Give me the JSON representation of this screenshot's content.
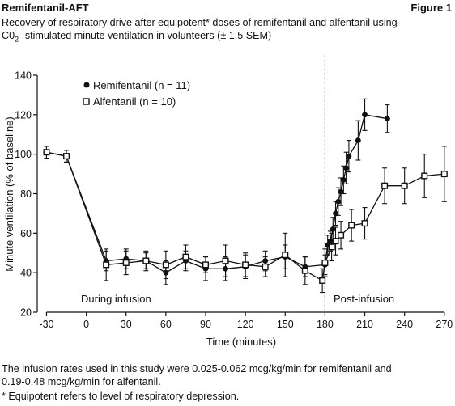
{
  "header": {
    "left": "Remifentanil-AFT",
    "right": "Figure 1",
    "subtitle_line1": "Recovery of respiratory drive after equipotent* doses of remifentanil and alfentanil using",
    "subtitle_line2_pre": "C0",
    "subtitle_line2_sub": "2",
    "subtitle_line2_post": "- stimulated minute ventilation in volunteers (± 1.5 SEM)"
  },
  "footnotes": {
    "line1": "The infusion rates used in this study were 0.025-0.062 mcg/kg/min for remifentanil and",
    "line2": "0.19-0.48 mcg/kg/min for alfentanil.",
    "line3": "* Equipotent refers to level of respiratory depression."
  },
  "chart_data": {
    "type": "line",
    "title": "",
    "xlabel": "Time (minutes)",
    "ylabel": "Minute ventilation (% of baseline)",
    "xlim": [
      -37,
      275
    ],
    "ylim": [
      20,
      140
    ],
    "x_ticks_left": [
      -30,
      0,
      30,
      60,
      90,
      120,
      150,
      180
    ],
    "x_ticks_right": [
      180,
      210,
      240,
      270
    ],
    "x_tick_labels": [
      "-30",
      "0",
      "30",
      "60",
      "90",
      "120",
      "150",
      "180",
      "210",
      "240",
      "270"
    ],
    "y_ticks": [
      20,
      40,
      60,
      80,
      100,
      120,
      140
    ],
    "y_tick_labels": [
      "20",
      "40",
      "60",
      "80",
      "100",
      "120",
      "140"
    ],
    "reference_line_x": 180,
    "annotations": [
      "During infusion",
      "Post-infusion"
    ],
    "legend_position": "top-left",
    "series": [
      {
        "name": "Remifentanil (n = 11)",
        "marker": "filled-circle",
        "points": [
          {
            "x": -30,
            "y": 101,
            "err": 3
          },
          {
            "x": -15,
            "y": 99,
            "err": 3
          },
          {
            "x": 15,
            "y": 46,
            "err": 5
          },
          {
            "x": 30,
            "y": 47,
            "err": 5
          },
          {
            "x": 45,
            "y": 46,
            "err": 4
          },
          {
            "x": 60,
            "y": 40,
            "err": 6
          },
          {
            "x": 75,
            "y": 46,
            "err": 5
          },
          {
            "x": 90,
            "y": 42,
            "err": 6
          },
          {
            "x": 105,
            "y": 42,
            "err": 6
          },
          {
            "x": 120,
            "y": 43,
            "err": 6
          },
          {
            "x": 135,
            "y": 46,
            "err": 5
          },
          {
            "x": 150,
            "y": 48,
            "err": 6
          },
          {
            "x": 165,
            "y": 43,
            "err": 5
          },
          {
            "x": 180,
            "y": 44,
            "err": 5
          },
          {
            "x": 182,
            "y": 54,
            "err": 5
          },
          {
            "x": 184,
            "y": 56,
            "err": 5
          },
          {
            "x": 186,
            "y": 62,
            "err": 6
          },
          {
            "x": 188,
            "y": 70,
            "err": 6
          },
          {
            "x": 190,
            "y": 76,
            "err": 7
          },
          {
            "x": 192,
            "y": 81,
            "err": 7
          },
          {
            "x": 194,
            "y": 87,
            "err": 7
          },
          {
            "x": 196,
            "y": 93,
            "err": 8
          },
          {
            "x": 198,
            "y": 99,
            "err": 8
          },
          {
            "x": 205,
            "y": 107,
            "err": 10
          },
          {
            "x": 210,
            "y": 120,
            "err": 8
          },
          {
            "x": 227,
            "y": 118,
            "err": 7
          }
        ]
      },
      {
        "name": "Alfentanil (n = 10)",
        "marker": "open-square",
        "points": [
          {
            "x": -30,
            "y": 101,
            "err": 3
          },
          {
            "x": -15,
            "y": 99,
            "err": 3
          },
          {
            "x": 15,
            "y": 44,
            "err": 8
          },
          {
            "x": 30,
            "y": 45,
            "err": 6
          },
          {
            "x": 45,
            "y": 46,
            "err": 5
          },
          {
            "x": 60,
            "y": 44,
            "err": 7
          },
          {
            "x": 75,
            "y": 48,
            "err": 6
          },
          {
            "x": 90,
            "y": 44,
            "err": 4
          },
          {
            "x": 105,
            "y": 46,
            "err": 8
          },
          {
            "x": 120,
            "y": 44,
            "err": 6
          },
          {
            "x": 135,
            "y": 43,
            "err": 5
          },
          {
            "x": 150,
            "y": 49,
            "err": 11
          },
          {
            "x": 165,
            "y": 41,
            "err": 7
          },
          {
            "x": 178,
            "y": 36,
            "err": 6
          },
          {
            "x": 180,
            "y": 45,
            "err": 7
          },
          {
            "x": 185,
            "y": 53,
            "err": 7
          },
          {
            "x": 188,
            "y": 56,
            "err": 7
          },
          {
            "x": 192,
            "y": 59,
            "err": 7
          },
          {
            "x": 200,
            "y": 64,
            "err": 8
          },
          {
            "x": 210,
            "y": 65,
            "err": 8
          },
          {
            "x": 225,
            "y": 84,
            "err": 9
          },
          {
            "x": 240,
            "y": 84,
            "err": 9
          },
          {
            "x": 255,
            "y": 89,
            "err": 11
          },
          {
            "x": 270,
            "y": 90,
            "err": 14
          }
        ]
      }
    ]
  }
}
